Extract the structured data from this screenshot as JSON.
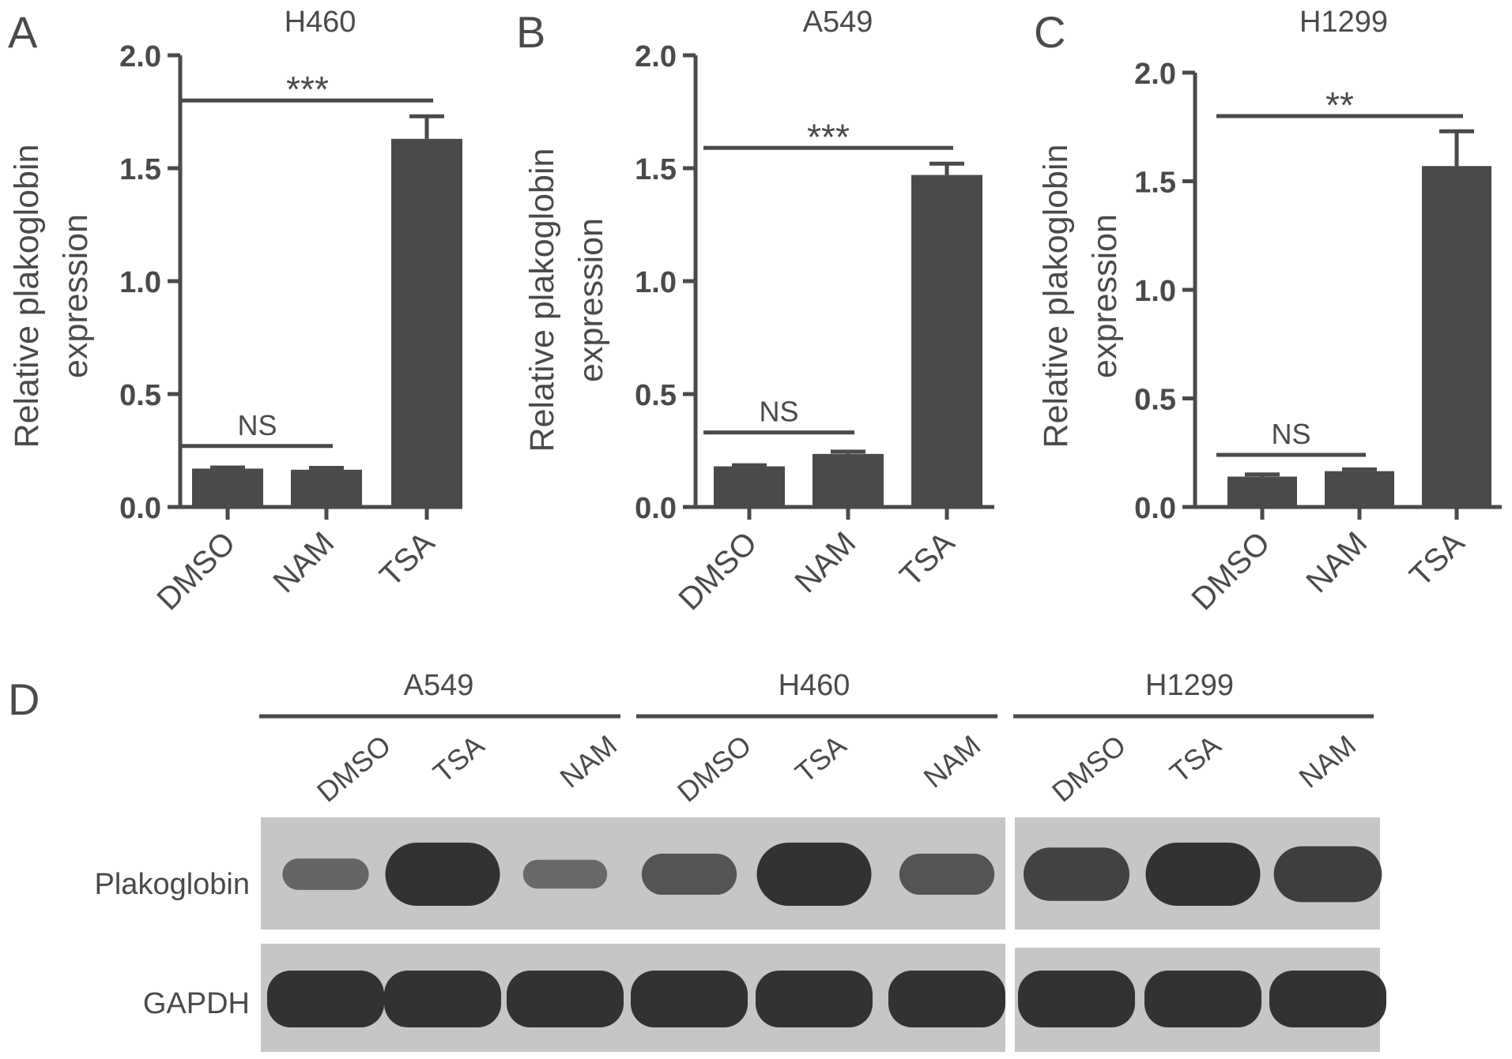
{
  "colors": {
    "bar": "#4a4a4a",
    "text": "#4a4a4a",
    "blot_bg": "#c6c6c6",
    "band": "#2a2a2a"
  },
  "chart_data": [
    {
      "panel": "A",
      "type": "bar",
      "title": "H460",
      "ylabel_line1": "Relative plakoglobin",
      "ylabel_line2": "expression",
      "categories": [
        "DMSO",
        "NAM",
        "TSA"
      ],
      "values": [
        0.17,
        0.165,
        1.63
      ],
      "errors": [
        0.005,
        0.008,
        0.1
      ],
      "ylim": [
        0,
        2.0
      ],
      "yticks": [
        "0.0",
        "0.5",
        "1.0",
        "1.5",
        "2.0"
      ],
      "significance": [
        {
          "from": 0,
          "to": 2,
          "label": "***",
          "y": 1.8
        },
        {
          "from": 0,
          "to": 1,
          "label": "NS",
          "y": 0.27
        }
      ]
    },
    {
      "panel": "B",
      "type": "bar",
      "title": "A549",
      "ylabel_line1": "Relative plakoglobin",
      "ylabel_line2": "expression",
      "categories": [
        "DMSO",
        "NAM",
        "TSA"
      ],
      "values": [
        0.18,
        0.235,
        1.47
      ],
      "errors": [
        0.005,
        0.01,
        0.05
      ],
      "ylim": [
        0,
        2.0
      ],
      "yticks": [
        "0.0",
        "0.5",
        "1.0",
        "1.5",
        "2.0"
      ],
      "significance": [
        {
          "from": 0,
          "to": 2,
          "label": "***",
          "y": 1.59
        },
        {
          "from": 0,
          "to": 1,
          "label": "NS",
          "y": 0.33
        }
      ]
    },
    {
      "panel": "C",
      "type": "bar",
      "title": "H1299",
      "ylabel_line1": "Relative plakoglobin",
      "ylabel_line2": "expression",
      "categories": [
        "DMSO",
        "NAM",
        "TSA"
      ],
      "values": [
        0.14,
        0.165,
        1.57
      ],
      "errors": [
        0.01,
        0.008,
        0.16
      ],
      "ylim": [
        0,
        2.0
      ],
      "yticks": [
        "0.0",
        "0.5",
        "1.0",
        "1.5",
        "2.0"
      ],
      "significance": [
        {
          "from": 0,
          "to": 2,
          "label": "**",
          "y": 1.8
        },
        {
          "from": 0,
          "to": 1,
          "label": "NS",
          "y": 0.24
        }
      ]
    }
  ],
  "blot": {
    "panel": "D",
    "groups": [
      {
        "name": "A549",
        "lanes": [
          "DMSO",
          "TSA",
          "NAM"
        ],
        "plakoglobin_intensity": [
          0.35,
          1.0,
          0.3
        ],
        "gapdh_intensity": [
          1.0,
          1.0,
          1.0
        ]
      },
      {
        "name": "H460",
        "lanes": [
          "DMSO",
          "TSA",
          "NAM"
        ],
        "plakoglobin_intensity": [
          0.55,
          1.0,
          0.55
        ],
        "gapdh_intensity": [
          1.0,
          1.0,
          1.0
        ]
      },
      {
        "name": "H1299",
        "lanes": [
          "DMSO",
          "TSA",
          "NAM"
        ],
        "plakoglobin_intensity": [
          0.8,
          1.0,
          0.85
        ],
        "gapdh_intensity": [
          1.0,
          1.0,
          1.0
        ]
      }
    ],
    "rows": [
      "Plakoglobin",
      "GAPDH"
    ]
  }
}
